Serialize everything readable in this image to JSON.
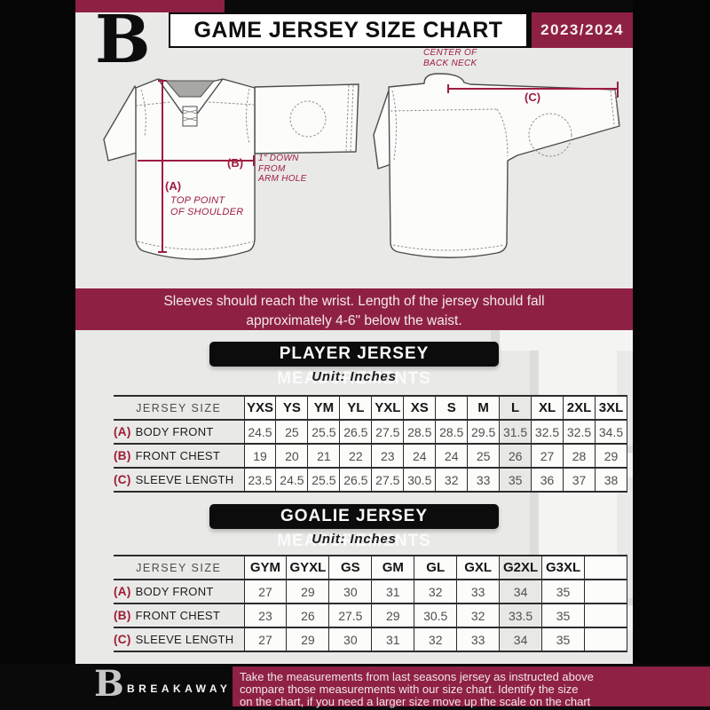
{
  "header": {
    "logo_letter": "B",
    "title": "GAME JERSEY SIZE CHART",
    "season": "2023/2024"
  },
  "diagram": {
    "front": {
      "a_label": "(A)",
      "b_label": "(B)",
      "a_note_lines": [
        "TOP POINT",
        "OF SHOULDER"
      ],
      "b_note_lines": [
        "1\" DOWN",
        "FROM",
        "ARM HOLE"
      ]
    },
    "back": {
      "c_label": "(C)",
      "c_note_lines": [
        "CENTER OF",
        "BACK NECK"
      ]
    }
  },
  "banner": {
    "line1": "Sleeves should reach the wrist. Length of the jersey should fall",
    "line2": "approximately 4-6\" below the waist."
  },
  "player_section": {
    "title": "PLAYER JERSEY MEASUREMENTS",
    "unit": "Unit: Inches",
    "header_label": "JERSEY SIZE",
    "highlight_col": 8,
    "sizes": [
      "YXS",
      "YS",
      "YM",
      "YL",
      "YXL",
      "XS",
      "S",
      "M",
      "L",
      "XL",
      "2XL",
      "3XL"
    ],
    "rows": [
      {
        "key": "(A)",
        "label": "BODY FRONT",
        "values": [
          "24.5",
          "25",
          "25.5",
          "26.5",
          "27.5",
          "28.5",
          "28.5",
          "29.5",
          "31.5",
          "32.5",
          "32.5",
          "34.5"
        ]
      },
      {
        "key": "(B)",
        "label": "FRONT CHEST",
        "values": [
          "19",
          "20",
          "21",
          "22",
          "23",
          "24",
          "24",
          "25",
          "26",
          "27",
          "28",
          "29"
        ]
      },
      {
        "key": "(C)",
        "label": "SLEEVE LENGTH",
        "values": [
          "23.5",
          "24.5",
          "25.5",
          "26.5",
          "27.5",
          "30.5",
          "32",
          "33",
          "35",
          "36",
          "37",
          "38"
        ]
      }
    ]
  },
  "goalie_section": {
    "title": "GOALIE JERSEY MEASUREMENTS",
    "unit": "Unit: Inches",
    "header_label": "JERSEY SIZE",
    "highlight_col": 6,
    "sizes": [
      "GYM",
      "GYXL",
      "GS",
      "GM",
      "GL",
      "GXL",
      "G2XL",
      "G3XL",
      ""
    ],
    "rows": [
      {
        "key": "(A)",
        "label": "BODY FRONT",
        "values": [
          "27",
          "29",
          "30",
          "31",
          "32",
          "33",
          "34",
          "35",
          ""
        ]
      },
      {
        "key": "(B)",
        "label": "FRONT CHEST",
        "values": [
          "23",
          "26",
          "27.5",
          "29",
          "30.5",
          "32",
          "33.5",
          "35",
          ""
        ]
      },
      {
        "key": "(C)",
        "label": "SLEEVE LENGTH",
        "values": [
          "27",
          "29",
          "30",
          "31",
          "32",
          "33",
          "34",
          "35",
          ""
        ]
      }
    ]
  },
  "footer": {
    "logo_letter": "B",
    "brand": "BREAKAWAY",
    "lines": [
      "Take the measurements from last seasons jersey as instructed above",
      "compare those measurements  with our size chart. Identify the size",
      "on the chart, if you need a larger size move up the scale on the chart"
    ]
  },
  "watermark_letter": "B",
  "colors": {
    "maroon": "#8e2143",
    "annotation_maroon": "#9e1c3f",
    "black": "#0a0a0a",
    "background_gray": "#e9e9e8"
  }
}
